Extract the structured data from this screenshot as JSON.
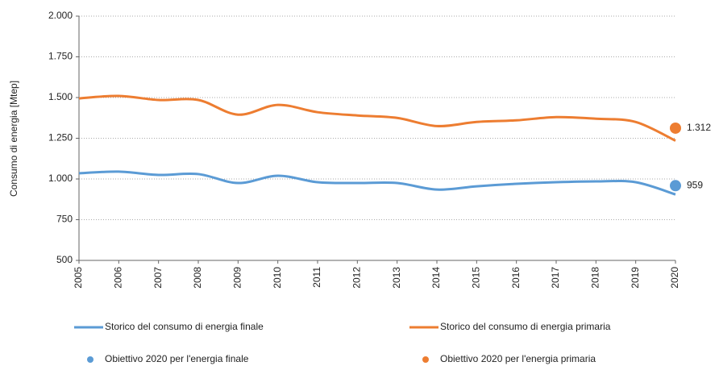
{
  "chart_data": {
    "type": "line",
    "y_label": "Consumo di energia  [Mtep]",
    "categories": [
      "2005",
      "2006",
      "2007",
      "2008",
      "2009",
      "2010",
      "2011",
      "2012",
      "2013",
      "2014",
      "2015",
      "2016",
      "2017",
      "2018",
      "2019",
      "2020"
    ],
    "ylim": [
      500,
      2000
    ],
    "yticks": [
      {
        "value": 500,
        "label": "500"
      },
      {
        "value": 750,
        "label": "750"
      },
      {
        "value": 1000,
        "label": "1.000"
      },
      {
        "value": 1250,
        "label": "1.250"
      },
      {
        "value": 1500,
        "label": "1.500"
      },
      {
        "value": 1750,
        "label": "1.750"
      },
      {
        "value": 2000,
        "label": "2.000"
      }
    ],
    "grid": true,
    "series": [
      {
        "name": "Storico del consumo di energia finale",
        "color": "#5b9bd5",
        "style": "line",
        "values": [
          1035,
          1045,
          1025,
          1030,
          975,
          1020,
          980,
          975,
          975,
          935,
          955,
          970,
          980,
          985,
          980,
          905
        ]
      },
      {
        "name": "Storico del consumo di energia primaria",
        "color": "#ed7d31",
        "style": "line",
        "values": [
          1495,
          1510,
          1485,
          1485,
          1395,
          1455,
          1410,
          1390,
          1375,
          1325,
          1350,
          1360,
          1380,
          1370,
          1350,
          1235
        ]
      },
      {
        "name": "Obiettivo 2020 per l'energia finale",
        "color": "#5b9bd5",
        "style": "marker",
        "x": [
          "2020"
        ],
        "values": [
          959
        ],
        "value_labels": [
          "959"
        ]
      },
      {
        "name": "Obiettivo 2020 per l'energia primaria",
        "color": "#ed7d31",
        "style": "marker",
        "x": [
          "2020"
        ],
        "values": [
          1312
        ],
        "value_labels": [
          "1.312"
        ]
      }
    ]
  }
}
